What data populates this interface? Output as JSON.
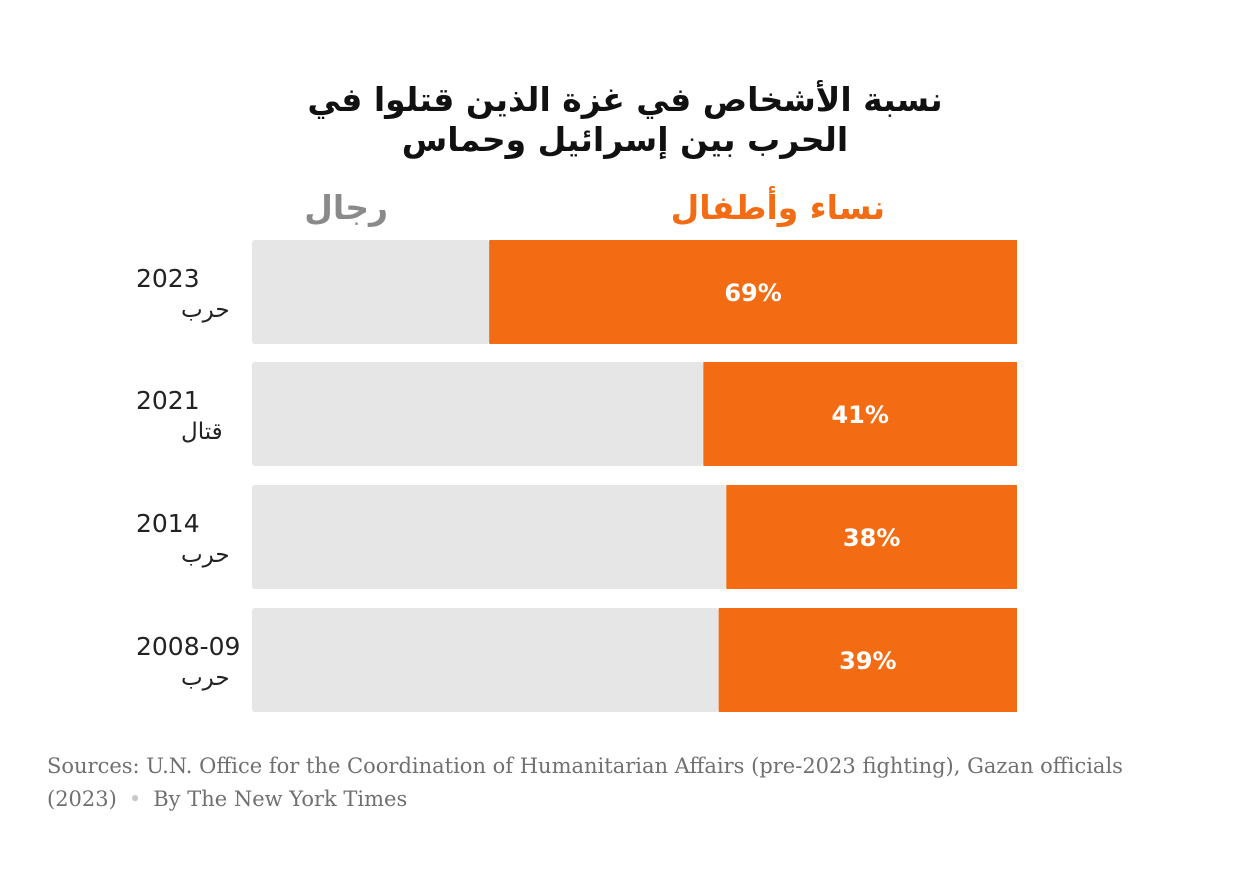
{
  "title_lines": [
    "نسبة الأشخاص في غزة الذين قتلوا في",
    "الحرب بين إسرائيل وحماس"
  ],
  "legend": {
    "women_children": "نساء وأطفال",
    "men": "رجال"
  },
  "colors": {
    "women_children": "#f36b12",
    "men": "#e6e6e6",
    "value_label": "#ffffff",
    "year_label": "#222222"
  },
  "chart_data": {
    "type": "bar",
    "orientation": "horizontal-stacked-percent",
    "categories": [
      {
        "year": "2023",
        "label": "حرب"
      },
      {
        "year": "2021",
        "label": "قتال"
      },
      {
        "year": "2014",
        "label": "حرب"
      },
      {
        "year": "2008-09",
        "label": "حرب"
      }
    ],
    "series": [
      {
        "name": "نساء وأطفال",
        "values": [
          69,
          41,
          38,
          39
        ],
        "labels": [
          "69%",
          "41%",
          "38%",
          "39%"
        ]
      },
      {
        "name": "رجال",
        "values": [
          31,
          59,
          62,
          61
        ]
      }
    ],
    "xlim": [
      0,
      100
    ],
    "grid": false,
    "legend_position": "top"
  },
  "source": {
    "text": "Sources: U.N. Office for the Coordination of Humanitarian Affairs (pre-2023 fighting), Gazan officials (2023)",
    "byline": "By The New York Times"
  }
}
